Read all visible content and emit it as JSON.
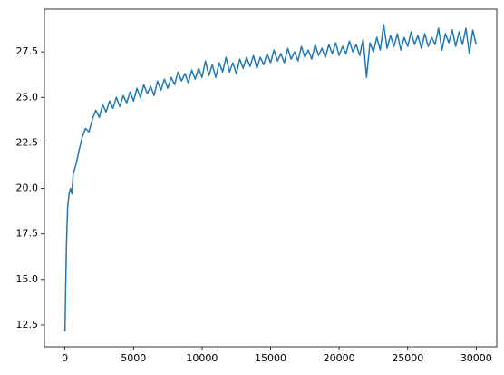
{
  "chart_data": {
    "type": "line",
    "x": [
      0,
      50,
      100,
      150,
      200,
      300,
      400,
      500,
      600,
      800,
      1000,
      1250,
      1500,
      1750,
      2000,
      2250,
      2500,
      2750,
      3000,
      3250,
      3500,
      3750,
      4000,
      4250,
      4500,
      4750,
      5000,
      5250,
      5500,
      5750,
      6000,
      6250,
      6500,
      6750,
      7000,
      7250,
      7500,
      7750,
      8000,
      8250,
      8500,
      8750,
      9000,
      9250,
      9500,
      9750,
      10000,
      10250,
      10500,
      10750,
      11000,
      11250,
      11500,
      11750,
      12000,
      12250,
      12500,
      12750,
      13000,
      13250,
      13500,
      13750,
      14000,
      14250,
      14500,
      14750,
      15000,
      15250,
      15500,
      15750,
      16000,
      16250,
      16500,
      16750,
      17000,
      17250,
      17500,
      17750,
      18000,
      18250,
      18500,
      18750,
      19000,
      19250,
      19500,
      19750,
      20000,
      20250,
      20500,
      20750,
      21000,
      21250,
      21500,
      21750,
      22000,
      22250,
      22500,
      22750,
      23000,
      23250,
      23500,
      23750,
      24000,
      24250,
      24500,
      24750,
      25000,
      25250,
      25500,
      25750,
      26000,
      26250,
      26500,
      26750,
      27000,
      27250,
      27500,
      27750,
      28000,
      28250,
      28500,
      28750,
      29000,
      29250,
      29500,
      29750,
      30000
    ],
    "series": [
      {
        "color": "#1f77b4",
        "values": [
          12.15,
          14.5,
          16.6,
          18.0,
          19.0,
          19.7,
          20.0,
          19.7,
          20.8,
          21.3,
          22.0,
          22.8,
          23.3,
          23.1,
          23.8,
          24.3,
          23.9,
          24.6,
          24.2,
          24.8,
          24.4,
          25.0,
          24.5,
          25.1,
          24.7,
          25.3,
          24.8,
          25.5,
          25.0,
          25.7,
          25.2,
          25.6,
          25.1,
          25.9,
          25.4,
          26.0,
          25.5,
          26.1,
          25.7,
          26.4,
          25.9,
          26.3,
          25.8,
          26.5,
          26.0,
          26.6,
          26.1,
          27.0,
          26.2,
          26.8,
          26.1,
          26.9,
          26.4,
          27.2,
          26.4,
          26.9,
          26.3,
          27.1,
          26.6,
          27.2,
          26.7,
          27.3,
          26.6,
          27.2,
          26.8,
          27.4,
          26.9,
          27.6,
          27.0,
          27.4,
          26.9,
          27.7,
          27.1,
          27.5,
          27.0,
          27.8,
          27.2,
          27.6,
          27.1,
          27.9,
          27.3,
          27.7,
          27.2,
          27.9,
          27.4,
          28.0,
          27.3,
          27.8,
          27.4,
          28.1,
          27.5,
          27.9,
          27.3,
          28.2,
          26.1,
          28.0,
          27.5,
          28.3,
          27.6,
          29.0,
          27.7,
          28.4,
          27.8,
          28.5,
          27.6,
          28.3,
          27.8,
          28.6,
          27.9,
          28.4,
          27.7,
          28.5,
          27.8,
          28.3,
          27.9,
          28.8,
          27.6,
          28.5,
          28.0,
          28.7,
          27.8,
          28.6,
          27.9,
          28.8,
          27.4,
          28.7,
          27.9
        ]
      }
    ],
    "xlim": [
      -1500,
      31500
    ],
    "ylim": [
      11.3,
      29.85
    ],
    "xticks": [
      0,
      5000,
      10000,
      15000,
      20000,
      25000,
      30000
    ],
    "yticks": [
      12.5,
      {
        "value": 15,
        "label": "15.0"
      },
      17.5,
      {
        "value": 20,
        "label": "20.0"
      },
      22.5,
      {
        "value": 25,
        "label": "25.0"
      },
      27.5
    ]
  }
}
